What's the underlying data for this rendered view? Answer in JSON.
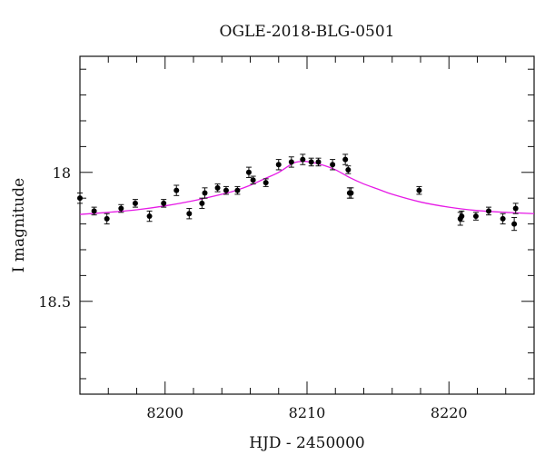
{
  "chart_data": {
    "type": "scatter",
    "title": "OGLE-2018-BLG-0501",
    "xlabel": "HJD - 2450000",
    "ylabel": "I magnitude",
    "xlim": [
      8194,
      8226
    ],
    "ylim": [
      18.86,
      17.55
    ],
    "y_axis_inverted": true,
    "x_ticks": [
      {
        "value": 8200,
        "label": "8200"
      },
      {
        "value": 8210,
        "label": "8210"
      },
      {
        "value": 8220,
        "label": "8220"
      }
    ],
    "y_ticks": [
      {
        "value": 18.0,
        "label": "18"
      },
      {
        "value": 18.5,
        "label": "18.5"
      }
    ],
    "grid": false,
    "series": [
      {
        "kind": "points",
        "color": "#000000",
        "x": [
          8194.0,
          8195.0,
          8195.9,
          8196.9,
          8197.9,
          8198.9,
          8199.9,
          8200.8,
          8201.7,
          8202.6,
          8202.8,
          8203.7,
          8204.3,
          8205.1,
          8205.9,
          8206.2,
          8207.1,
          8208.0,
          8208.9,
          8209.7,
          8210.3,
          8210.8,
          8211.8,
          8212.7,
          8212.9,
          8213.0,
          8213.1,
          8217.9,
          8220.8,
          8220.9,
          8221.9,
          8222.8,
          8223.8,
          8224.6,
          8224.7
        ],
        "y": [
          18.1,
          18.15,
          18.18,
          18.14,
          18.12,
          18.17,
          18.12,
          18.07,
          18.16,
          18.12,
          18.08,
          18.06,
          18.07,
          18.07,
          18.0,
          18.03,
          18.04,
          17.97,
          17.96,
          17.95,
          17.96,
          17.96,
          17.97,
          17.95,
          17.99,
          18.08,
          18.08,
          18.07,
          18.18,
          18.17,
          18.17,
          18.15,
          18.18,
          18.2,
          18.14
        ],
        "err": [
          0.02,
          0.015,
          0.02,
          0.015,
          0.015,
          0.02,
          0.015,
          0.02,
          0.02,
          0.02,
          0.02,
          0.015,
          0.015,
          0.015,
          0.02,
          0.015,
          0.015,
          0.02,
          0.02,
          0.02,
          0.015,
          0.015,
          0.02,
          0.02,
          0.015,
          0.02,
          0.02,
          0.015,
          0.025,
          0.02,
          0.015,
          0.015,
          0.02,
          0.025,
          0.02
        ]
      },
      {
        "kind": "model",
        "color": "#e61ae6",
        "x": [
          8194,
          8196,
          8198,
          8200,
          8202,
          8204,
          8205,
          8206,
          8207,
          8208,
          8209,
          8209.5,
          8210,
          8211,
          8212,
          8213,
          8214,
          8215,
          8216,
          8218,
          8220,
          8222,
          8224,
          8226
        ],
        "y": [
          18.163,
          18.155,
          18.145,
          18.13,
          18.11,
          18.085,
          18.07,
          18.05,
          18.025,
          18.0,
          17.965,
          17.958,
          17.958,
          17.97,
          17.99,
          18.02,
          18.045,
          18.065,
          18.085,
          18.115,
          18.135,
          18.148,
          18.155,
          18.16
        ]
      }
    ]
  }
}
